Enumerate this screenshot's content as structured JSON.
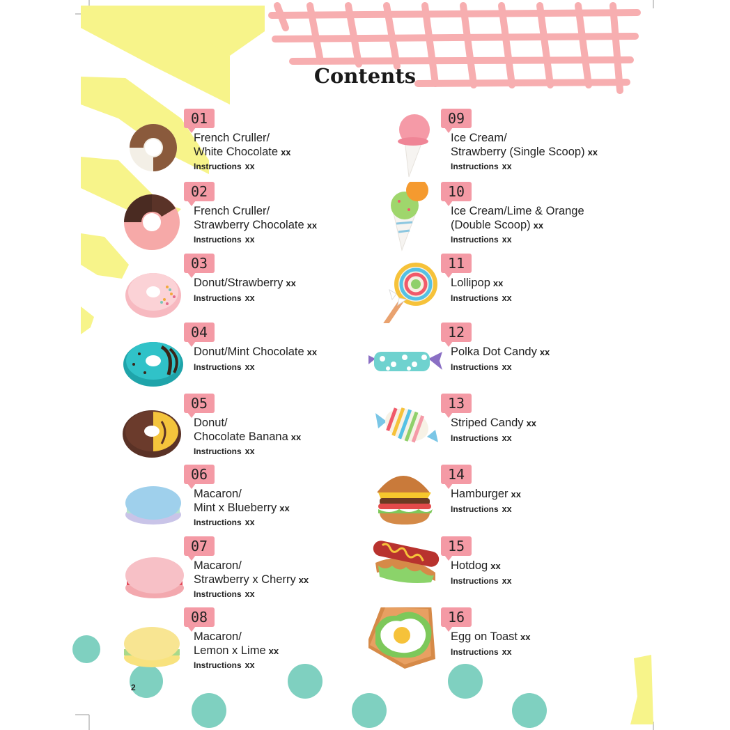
{
  "page": {
    "title": "Contents",
    "page_number": "2"
  },
  "colors": {
    "badge": "#f49aa5",
    "yellow": "#f7f48a",
    "teal": "#7fd0c0",
    "grid": "#f7aeb0"
  },
  "entries": [
    {
      "num": "01",
      "lines": [
        "French Cruller/",
        "White Chocolate"
      ],
      "suffix": "xx",
      "ins_label": "Instructions",
      "ins_page": "xx",
      "icon": "french-cruller-white-chocolate-icon"
    },
    {
      "num": "02",
      "lines": [
        "French Cruller/",
        "Strawberry Chocolate"
      ],
      "suffix": "xx",
      "ins_label": "Instructions",
      "ins_page": "xx",
      "icon": "french-cruller-strawberry-chocolate-icon"
    },
    {
      "num": "03",
      "lines": [
        "Donut/Strawberry"
      ],
      "suffix": "xx",
      "ins_label": "Instructions",
      "ins_page": "xx",
      "icon": "donut-strawberry-icon"
    },
    {
      "num": "04",
      "lines": [
        "Donut/Mint Chocolate"
      ],
      "suffix": "xx",
      "ins_label": "Instructions",
      "ins_page": "xx",
      "icon": "donut-mint-chocolate-icon"
    },
    {
      "num": "05",
      "lines": [
        "Donut/",
        "Chocolate Banana"
      ],
      "suffix": "xx",
      "ins_label": "Instructions",
      "ins_page": "xx",
      "icon": "donut-chocolate-banana-icon"
    },
    {
      "num": "06",
      "lines": [
        "Macaron/",
        "Mint x Blueberry"
      ],
      "suffix": "xx",
      "ins_label": "Instructions",
      "ins_page": "xx",
      "icon": "macaron-mint-blueberry-icon"
    },
    {
      "num": "07",
      "lines": [
        "Macaron/",
        "Strawberry x Cherry"
      ],
      "suffix": "xx",
      "ins_label": "Instructions",
      "ins_page": "xx",
      "icon": "macaron-strawberry-cherry-icon"
    },
    {
      "num": "08",
      "lines": [
        "Macaron/",
        "Lemon x Lime"
      ],
      "suffix": "xx",
      "ins_label": "Instructions",
      "ins_page": "xx",
      "icon": "macaron-lemon-lime-icon"
    },
    {
      "num": "09",
      "lines": [
        "Ice Cream/",
        "Strawberry (Single Scoop)"
      ],
      "suffix": "xx",
      "ins_label": "Instructions",
      "ins_page": "xx",
      "icon": "ice-cream-single-scoop-icon"
    },
    {
      "num": "10",
      "lines": [
        "Ice Cream/Lime & Orange",
        "(Double Scoop)"
      ],
      "suffix": "xx",
      "ins_label": "Instructions",
      "ins_page": "xx",
      "icon": "ice-cream-double-scoop-icon"
    },
    {
      "num": "11",
      "lines": [
        "Lollipop"
      ],
      "suffix": "xx",
      "ins_label": "Instructions",
      "ins_page": "xx",
      "icon": "lollipop-icon"
    },
    {
      "num": "12",
      "lines": [
        "Polka Dot Candy"
      ],
      "suffix": "xx",
      "ins_label": "Instructions",
      "ins_page": "xx",
      "icon": "polka-dot-candy-icon"
    },
    {
      "num": "13",
      "lines": [
        "Striped Candy"
      ],
      "suffix": "xx",
      "ins_label": "Instructions",
      "ins_page": "xx",
      "icon": "striped-candy-icon"
    },
    {
      "num": "14",
      "lines": [
        "Hamburger"
      ],
      "suffix": "xx",
      "ins_label": "Instructions",
      "ins_page": "xx",
      "icon": "hamburger-icon"
    },
    {
      "num": "15",
      "lines": [
        "Hotdog"
      ],
      "suffix": "xx",
      "ins_label": "Instructions",
      "ins_page": "xx",
      "icon": "hotdog-icon"
    },
    {
      "num": "16",
      "lines": [
        "Egg on Toast"
      ],
      "suffix": "xx",
      "ins_label": "Instructions",
      "ins_page": "xx",
      "icon": "egg-on-toast-icon"
    }
  ]
}
